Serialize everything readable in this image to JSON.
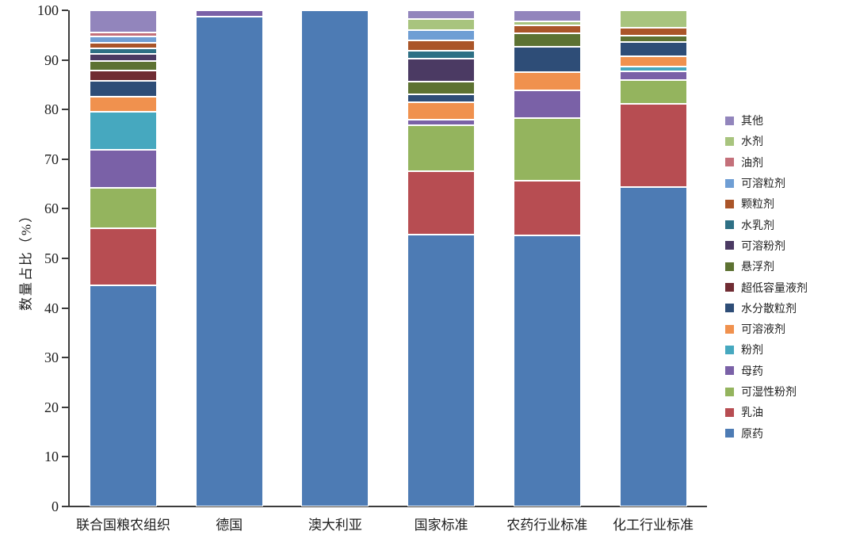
{
  "chart_data": {
    "type": "bar",
    "stacked": true,
    "title": "",
    "xlabel": "",
    "ylabel": "数量占比（%）",
    "ylim": [
      0,
      100
    ],
    "yticks": [
      0,
      10,
      20,
      30,
      40,
      50,
      60,
      70,
      80,
      90,
      100
    ],
    "grid": false,
    "legend_position": "right",
    "categories": [
      "联合国粮农组织",
      "德国",
      "澳大利亚",
      "国家标准",
      "农药行业标准",
      "化工行业标准"
    ],
    "series": [
      {
        "name": "其他",
        "color": "#9285bc",
        "values": [
          4.4,
          0,
          0,
          1.8,
          2.3,
          0
        ]
      },
      {
        "name": "水剂",
        "color": "#a8c47e",
        "values": [
          0,
          0,
          0,
          2.1,
          0.7,
          3.5
        ]
      },
      {
        "name": "油剂",
        "color": "#c4707a",
        "values": [
          0.9,
          0,
          0,
          0,
          0,
          0
        ]
      },
      {
        "name": "可溶粒剂",
        "color": "#6f9ed4",
        "values": [
          1.2,
          0,
          0,
          2.1,
          0,
          0
        ]
      },
      {
        "name": "颗粒剂",
        "color": "#aa5529",
        "values": [
          1.1,
          0,
          0,
          2.2,
          1.6,
          1.6
        ]
      },
      {
        "name": "水乳剂",
        "color": "#2e7085",
        "values": [
          1.2,
          0,
          0,
          1.5,
          0,
          0
        ]
      },
      {
        "name": "可溶粉剂",
        "color": "#4b3a63",
        "values": [
          1.4,
          0,
          0,
          4.7,
          0,
          0
        ]
      },
      {
        "name": "悬浮剂",
        "color": "#5d7232",
        "values": [
          1.9,
          0,
          0,
          2.6,
          2.8,
          1.3
        ]
      },
      {
        "name": "超低容量液剂",
        "color": "#702c33",
        "values": [
          2.1,
          0,
          0,
          0,
          0,
          0
        ]
      },
      {
        "name": "水分散粒剂",
        "color": "#2e4d77",
        "values": [
          3.2,
          0,
          0,
          1.5,
          5.1,
          2.9
        ]
      },
      {
        "name": "可溶液剂",
        "color": "#f0914e",
        "values": [
          3.1,
          0,
          0,
          3.5,
          3.7,
          2.0
        ]
      },
      {
        "name": "粉剂",
        "color": "#46a8bf",
        "values": [
          7.6,
          0,
          0,
          0,
          0,
          1.0
        ]
      },
      {
        "name": "母药",
        "color": "#7a61a7",
        "values": [
          7.6,
          1.2,
          0,
          1.2,
          5.5,
          1.8
        ]
      },
      {
        "name": "可湿性粉剂",
        "color": "#94b45e",
        "values": [
          8.2,
          0,
          0,
          9.2,
          12.6,
          4.8
        ]
      },
      {
        "name": "乳油",
        "color": "#b74d52",
        "values": [
          11.6,
          0,
          0,
          12.8,
          11.1,
          16.7
        ]
      },
      {
        "name": "原药",
        "color": "#4d7bb4",
        "values": [
          44.5,
          98.8,
          100,
          54.8,
          54.6,
          64.4
        ]
      }
    ]
  }
}
